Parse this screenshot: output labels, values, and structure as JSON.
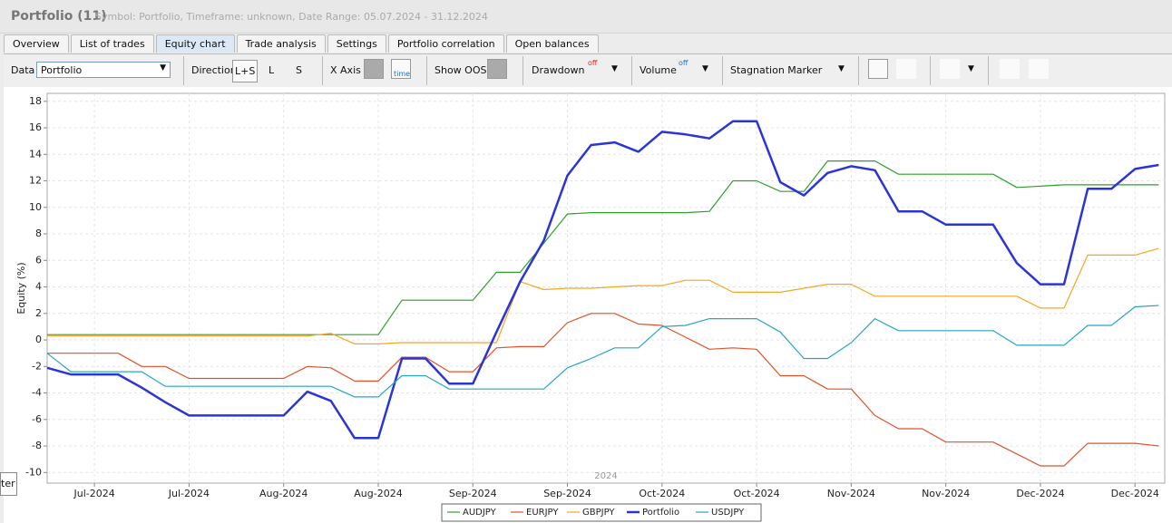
{
  "header": {
    "title": "Portfolio (11)",
    "subtitle": "Symbol: Portfolio, Timeframe: unknown, Date Range: 05.07.2024 - 31.12.2024"
  },
  "tabs": [
    "Overview",
    "List of trades",
    "Equity chart",
    "Trade analysis",
    "Settings",
    "Portfolio correlation",
    "Open balances"
  ],
  "toolbar": {
    "data_label": "Data",
    "data_value": "Portfolio",
    "direction_label": "Direction",
    "direction_options": [
      "L+S",
      "L",
      "S"
    ],
    "x_axis_label": "X Axis",
    "x_axis_icon": "time",
    "show_oos_label": "Show OOS",
    "drawdown_label": "Drawdown",
    "drawdown_icon": "off",
    "volume_label": "Volume",
    "volume_icon": "off",
    "stagnation_label": "Stagnation Marker"
  },
  "tooltip": "ter",
  "chart_data": {
    "type": "line",
    "y_label": "Equity (%)",
    "x_annotation": "2024",
    "grid": true,
    "categories": [
      null,
      null,
      "Jul-2024",
      null,
      null,
      null,
      "Jul-2024",
      null,
      null,
      null,
      "Aug-2024",
      null,
      null,
      null,
      "Aug-2024",
      null,
      null,
      null,
      "Sep-2024",
      null,
      null,
      null,
      "Sep-2024",
      null,
      null,
      null,
      "Oct-2024",
      null,
      null,
      null,
      "Oct-2024",
      null,
      null,
      null,
      "Nov-2024",
      null,
      null,
      null,
      "Nov-2024",
      null,
      null,
      null,
      "Dec-2024",
      null,
      null,
      null,
      "Dec-2024",
      null
    ],
    "ylim": [
      -10.8,
      18.6
    ],
    "yticks": [
      -10,
      -8,
      -6,
      -4,
      -2,
      0,
      2,
      4,
      6,
      8,
      10,
      12,
      14,
      16,
      18
    ],
    "series": [
      {
        "name": "AUDJPY",
        "color": "#2ca02c",
        "width": 1.2,
        "values": [
          0.4,
          0.4,
          0.4,
          0.4,
          0.4,
          0.4,
          0.4,
          0.4,
          0.4,
          0.4,
          0.4,
          0.4,
          0.4,
          0.4,
          0.4,
          3.0,
          3.0,
          3.0,
          3.0,
          5.1,
          5.1,
          7.3,
          9.5,
          9.6,
          9.6,
          9.6,
          9.6,
          9.6,
          9.7,
          12.0,
          12.0,
          11.2,
          11.2,
          13.5,
          13.5,
          13.5,
          12.5,
          12.5,
          12.5,
          12.5,
          12.5,
          11.5,
          11.6,
          11.7,
          11.7,
          11.7,
          11.7,
          11.7
        ]
      },
      {
        "name": "EURJPY",
        "color": "#e0522a",
        "width": 1.2,
        "values": [
          -1.0,
          -1.0,
          -1.0,
          -1.0,
          -2.0,
          -2.0,
          -2.9,
          -2.9,
          -2.9,
          -2.9,
          -2.9,
          -2.0,
          -2.1,
          -3.1,
          -3.1,
          -1.3,
          -1.3,
          -2.4,
          -2.4,
          -0.6,
          -0.5,
          -0.5,
          1.3,
          2.0,
          2.0,
          1.2,
          1.1,
          0.2,
          -0.7,
          -0.6,
          -0.7,
          -2.7,
          -2.7,
          -3.7,
          -3.7,
          -5.7,
          -6.7,
          -6.7,
          -7.7,
          -7.7,
          -7.7,
          -8.6,
          -9.5,
          -9.5,
          -7.8,
          -7.8,
          -7.8,
          -8.0
        ]
      },
      {
        "name": "GBPJPY",
        "color": "#f5a623",
        "width": 1.2,
        "values": [
          0.3,
          0.3,
          0.3,
          0.3,
          0.3,
          0.3,
          0.3,
          0.3,
          0.3,
          0.3,
          0.3,
          0.3,
          0.5,
          -0.3,
          -0.3,
          -0.2,
          -0.2,
          -0.2,
          -0.2,
          -0.2,
          4.4,
          3.8,
          3.9,
          3.9,
          4.0,
          4.1,
          4.1,
          4.5,
          4.5,
          3.6,
          3.6,
          3.6,
          3.9,
          4.2,
          4.2,
          3.3,
          3.3,
          3.3,
          3.3,
          3.3,
          3.3,
          3.3,
          2.4,
          2.4,
          6.4,
          6.4,
          6.4,
          6.9
        ]
      },
      {
        "name": "Portfolio",
        "color": "#2b35d6",
        "width": 2.5,
        "values": [
          -2.1,
          -2.6,
          -2.6,
          -2.6,
          -3.6,
          -4.7,
          -5.7,
          -5.7,
          -5.7,
          -5.7,
          -5.7,
          -3.9,
          -4.6,
          -7.4,
          -7.4,
          -1.4,
          -1.4,
          -3.3,
          -3.3,
          0.6,
          4.4,
          7.5,
          12.4,
          14.7,
          14.9,
          14.2,
          15.7,
          15.5,
          15.2,
          16.5,
          16.5,
          11.9,
          10.9,
          12.6,
          13.1,
          12.8,
          9.7,
          9.7,
          8.7,
          8.7,
          8.7,
          5.8,
          4.2,
          4.2,
          11.4,
          11.4,
          12.9,
          13.2
        ]
      },
      {
        "name": "USDJPY",
        "color": "#26a6c4",
        "width": 1.2,
        "values": [
          -1.0,
          -2.4,
          -2.4,
          -2.4,
          -2.4,
          -3.5,
          -3.5,
          -3.5,
          -3.5,
          -3.5,
          -3.5,
          -3.5,
          -3.5,
          -4.3,
          -4.3,
          -2.7,
          -2.7,
          -3.7,
          -3.7,
          -3.7,
          -3.7,
          -3.7,
          -2.1,
          -1.4,
          -0.6,
          -0.6,
          1.0,
          1.1,
          1.6,
          1.6,
          1.6,
          0.6,
          -1.4,
          -1.4,
          -0.2,
          1.6,
          0.7,
          0.7,
          0.7,
          0.7,
          0.7,
          -0.4,
          -0.4,
          -0.4,
          1.1,
          1.1,
          2.5,
          2.6
        ]
      }
    ]
  }
}
